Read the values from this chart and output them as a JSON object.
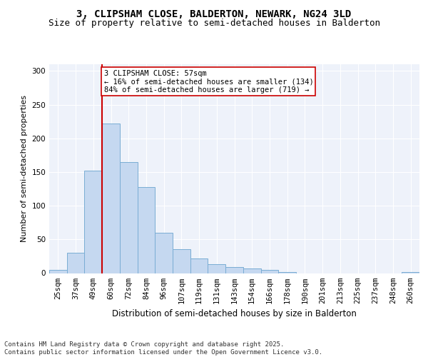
{
  "title1": "3, CLIPSHAM CLOSE, BALDERTON, NEWARK, NG24 3LD",
  "title2": "Size of property relative to semi-detached houses in Balderton",
  "xlabel": "Distribution of semi-detached houses by size in Balderton",
  "ylabel": "Number of semi-detached properties",
  "categories": [
    "25sqm",
    "37sqm",
    "49sqm",
    "60sqm",
    "72sqm",
    "84sqm",
    "96sqm",
    "107sqm",
    "119sqm",
    "131sqm",
    "143sqm",
    "154sqm",
    "166sqm",
    "178sqm",
    "190sqm",
    "201sqm",
    "213sqm",
    "225sqm",
    "237sqm",
    "248sqm",
    "260sqm"
  ],
  "values": [
    5,
    30,
    152,
    222,
    165,
    128,
    60,
    35,
    22,
    13,
    9,
    7,
    5,
    2,
    0,
    0,
    0,
    0,
    0,
    0,
    2
  ],
  "bar_color": "#c5d8f0",
  "bar_edge_color": "#7aadd4",
  "vline_color": "#cc0000",
  "annotation_text": "3 CLIPSHAM CLOSE: 57sqm\n← 16% of semi-detached houses are smaller (134)\n84% of semi-detached houses are larger (719) →",
  "annotation_box_color": "#ffffff",
  "annotation_box_edge": "#cc0000",
  "ylim": [
    0,
    310
  ],
  "yticks": [
    0,
    50,
    100,
    150,
    200,
    250,
    300
  ],
  "footnote": "Contains HM Land Registry data © Crown copyright and database right 2025.\nContains public sector information licensed under the Open Government Licence v3.0.",
  "bg_color": "#eef2fa",
  "title1_fontsize": 10,
  "title2_fontsize": 9,
  "xlabel_fontsize": 8.5,
  "ylabel_fontsize": 8,
  "tick_fontsize": 7.5,
  "annotation_fontsize": 7.5,
  "footnote_fontsize": 6.5
}
